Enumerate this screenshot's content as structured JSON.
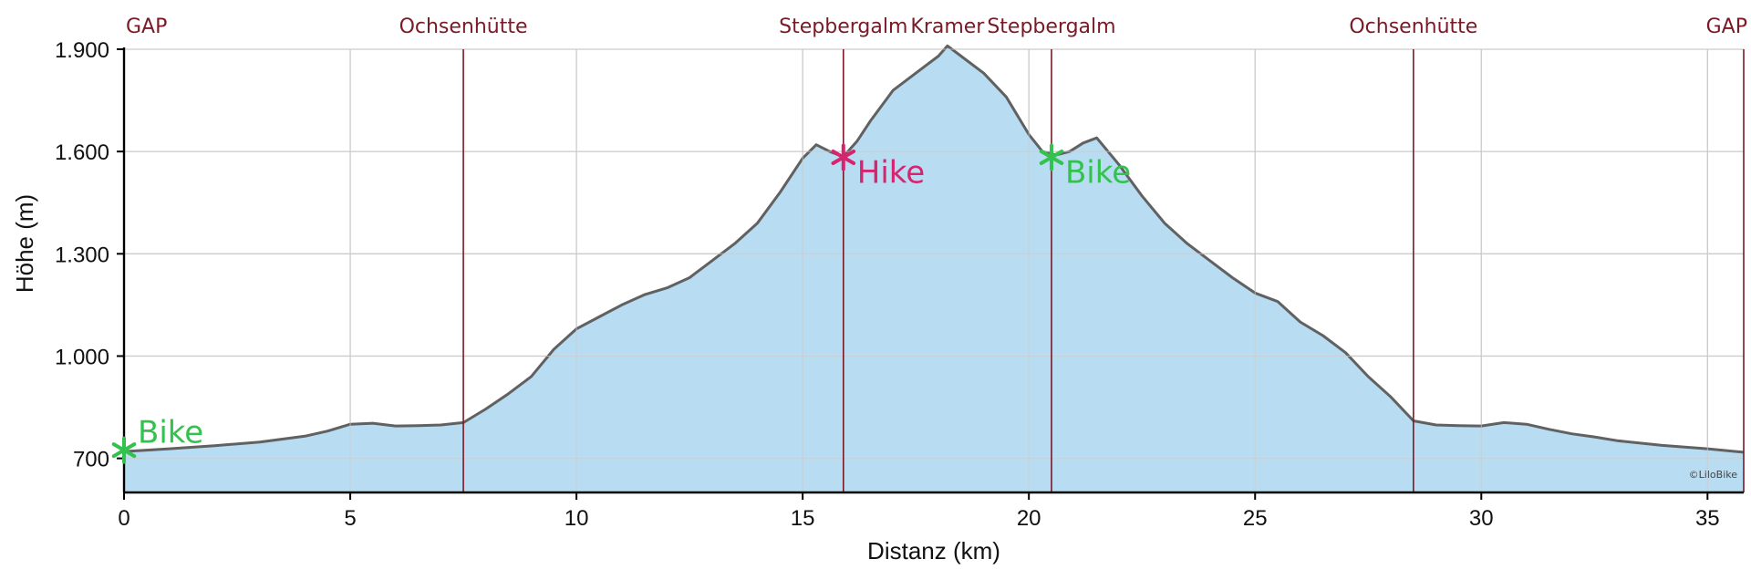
{
  "colors": {
    "fill": "#b8dcf1",
    "line": "#616161",
    "grid": "#cccccc",
    "poi": "#7a1a26",
    "hike": "#d6246e",
    "bike": "#33c24d"
  },
  "credit": "©LiloBike",
  "chart_data": {
    "type": "area",
    "xlabel": "Distanz (km)",
    "ylabel": "Höhe (m)",
    "xlim": [
      0,
      35.8
    ],
    "ylim": [
      600,
      1900
    ],
    "xticks": [
      {
        "value": 0,
        "label": "0"
      },
      {
        "value": 5,
        "label": "5"
      },
      {
        "value": 10,
        "label": "10"
      },
      {
        "value": 15,
        "label": "15"
      },
      {
        "value": 20,
        "label": "20"
      },
      {
        "value": 25,
        "label": "25"
      },
      {
        "value": 30,
        "label": "30"
      },
      {
        "value": 35,
        "label": "35"
      }
    ],
    "yticks": [
      {
        "value": 700,
        "label": "700"
      },
      {
        "value": 1000,
        "label": "1.000"
      },
      {
        "value": 1300,
        "label": "1.300"
      },
      {
        "value": 1600,
        "label": "1.600"
      },
      {
        "value": 1900,
        "label": "1.900"
      }
    ],
    "grid": true,
    "profile": {
      "x": [
        0,
        1,
        2,
        3,
        4,
        4.5,
        5,
        5.5,
        6,
        6.5,
        7,
        7.5,
        8,
        8.5,
        9,
        9.5,
        10,
        10.5,
        11,
        11.5,
        12,
        12.5,
        13,
        13.5,
        14,
        14.5,
        15,
        15.3,
        15.6,
        15.9,
        16.2,
        16.5,
        17,
        17.5,
        18,
        18.2,
        18.5,
        19,
        19.5,
        20,
        20.3,
        20.6,
        20.9,
        21.2,
        21.5,
        22,
        22.5,
        23,
        23.5,
        24,
        24.5,
        25,
        25.5,
        26,
        26.5,
        27,
        27.5,
        28,
        28.5,
        29,
        29.5,
        30,
        30.5,
        31,
        31.5,
        32,
        32.5,
        33,
        34,
        35,
        35.8
      ],
      "y": [
        720,
        728,
        737,
        748,
        765,
        780,
        800,
        803,
        795,
        796,
        798,
        805,
        845,
        890,
        940,
        1020,
        1080,
        1115,
        1150,
        1180,
        1200,
        1230,
        1280,
        1330,
        1390,
        1480,
        1580,
        1620,
        1600,
        1585,
        1630,
        1690,
        1780,
        1830,
        1880,
        1910,
        1880,
        1830,
        1760,
        1650,
        1600,
        1590,
        1600,
        1625,
        1640,
        1560,
        1470,
        1390,
        1330,
        1280,
        1230,
        1185,
        1160,
        1100,
        1060,
        1010,
        940,
        880,
        810,
        798,
        796,
        795,
        805,
        800,
        785,
        772,
        763,
        752,
        738,
        728,
        718
      ]
    },
    "waypoints": [
      {
        "x": 0,
        "label": "GAP",
        "line": false
      },
      {
        "x": 7.5,
        "label": "Ochsenhütte",
        "line": true
      },
      {
        "x": 15.9,
        "label": "Stepbergalm",
        "line": true
      },
      {
        "x": 18.2,
        "label": "Kramer",
        "line": false
      },
      {
        "x": 20.5,
        "label": "Stepbergalm",
        "line": true
      },
      {
        "x": 28.5,
        "label": "Ochsenhütte",
        "line": true
      },
      {
        "x": 35.8,
        "label": "GAP",
        "line": true
      }
    ],
    "markers": [
      {
        "x": 0,
        "y": 724,
        "label": "Bike",
        "color": "bike"
      },
      {
        "x": 15.9,
        "y": 1583,
        "label": "Hike",
        "color": "hike"
      },
      {
        "x": 20.5,
        "y": 1583,
        "label": "Bike",
        "color": "bike"
      }
    ]
  }
}
